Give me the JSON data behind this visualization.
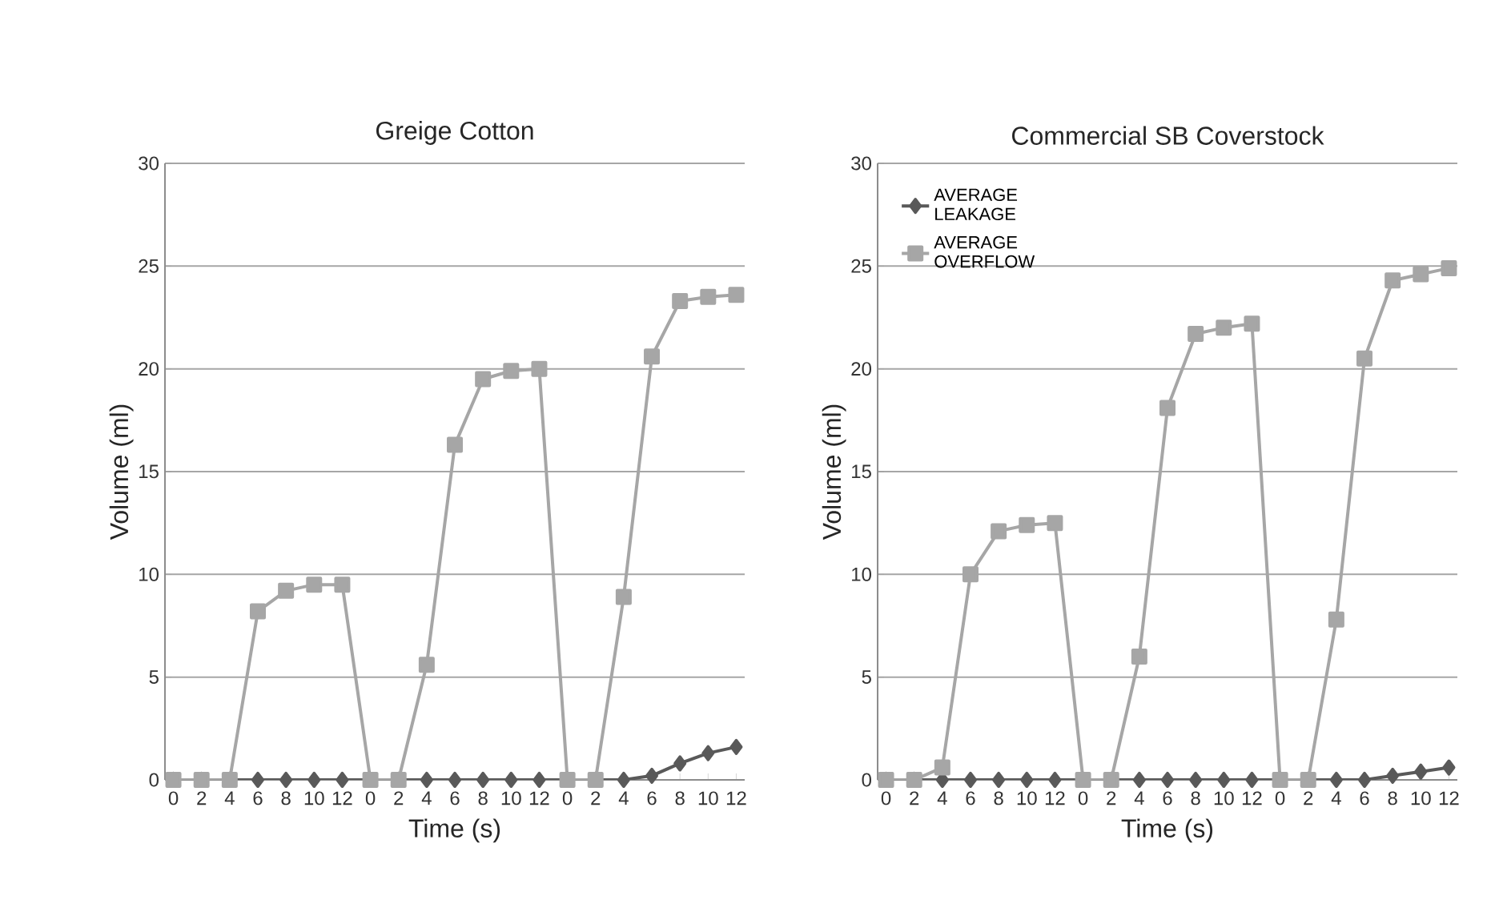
{
  "chart_data": [
    {
      "type": "line",
      "title": "Greige Cotton",
      "xlabel": "Time (s)",
      "ylabel": "Volume (ml)",
      "categories": [
        "0",
        "2",
        "4",
        "6",
        "8",
        "10",
        "12",
        "0",
        "2",
        "4",
        "6",
        "8",
        "10",
        "12",
        "0",
        "2",
        "4",
        "6",
        "8",
        "10",
        "12"
      ],
      "series": [
        {
          "color": "#595959",
          "marker": "diamond",
          "values": [
            0,
            0,
            0,
            0,
            0,
            0,
            0,
            0,
            0,
            0,
            0,
            0,
            0,
            0,
            0,
            0,
            0,
            0.2,
            0.8,
            1.3,
            1.6
          ]
        },
        {
          "color": "#a6a6a6",
          "marker": "square",
          "values": [
            0,
            0,
            0,
            8.2,
            9.2,
            9.5,
            9.5,
            0,
            0,
            5.6,
            16.3,
            19.5,
            19.9,
            20.0,
            0,
            0,
            8.9,
            20.6,
            23.3,
            23.5,
            23.6
          ]
        }
      ],
      "ylim": [
        0,
        30
      ],
      "yticks": [
        0,
        5,
        10,
        15,
        20,
        25,
        30
      ],
      "grid": "y",
      "legend": false
    },
    {
      "type": "line",
      "title": "Commercial SB Coverstock",
      "xlabel": "Time (s)",
      "ylabel": "Volume (ml)",
      "categories": [
        "0",
        "2",
        "4",
        "6",
        "8",
        "10",
        "12",
        "0",
        "2",
        "4",
        "6",
        "8",
        "10",
        "12",
        "0",
        "2",
        "4",
        "6",
        "8",
        "10",
        "12"
      ],
      "series": [
        {
          "name": "AVERAGE LEAKAGE",
          "color": "#595959",
          "marker": "diamond",
          "values": [
            0,
            0,
            0,
            0,
            0,
            0,
            0,
            0,
            0,
            0,
            0,
            0,
            0,
            0,
            0,
            0,
            0,
            0,
            0.2,
            0.4,
            0.6
          ]
        },
        {
          "name": "AVERAGE OVERFLOW",
          "color": "#a6a6a6",
          "marker": "square",
          "values": [
            0,
            0,
            0.6,
            10,
            12.1,
            12.4,
            12.5,
            0,
            0,
            6,
            18.1,
            21.7,
            22,
            22.2,
            0,
            0,
            7.8,
            20.5,
            24.3,
            24.6,
            24.9
          ]
        }
      ],
      "ylim": [
        0,
        30
      ],
      "yticks": [
        0,
        5,
        10,
        15,
        20,
        25,
        30
      ],
      "grid": "y",
      "legend": "top left"
    }
  ]
}
